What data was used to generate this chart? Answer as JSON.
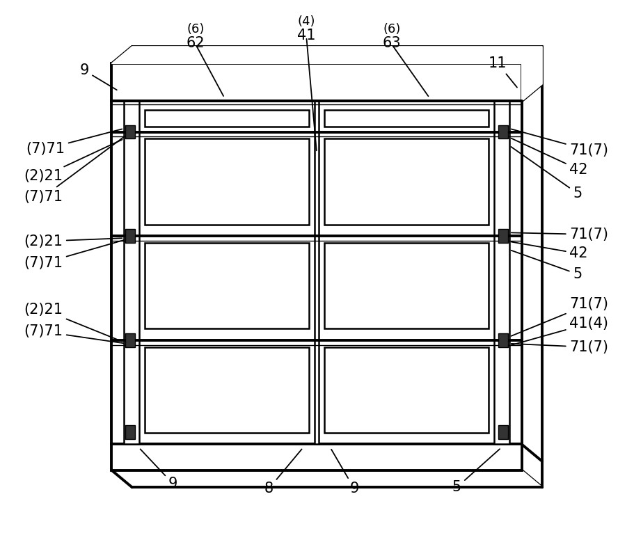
{
  "bg_color": "#ffffff",
  "line_color": "#000000",
  "lw_thick": 2.8,
  "lw_medium": 1.8,
  "lw_thin": 1.0,
  "fig_width": 9.11,
  "fig_height": 7.76,
  "connector_color": "#333333"
}
